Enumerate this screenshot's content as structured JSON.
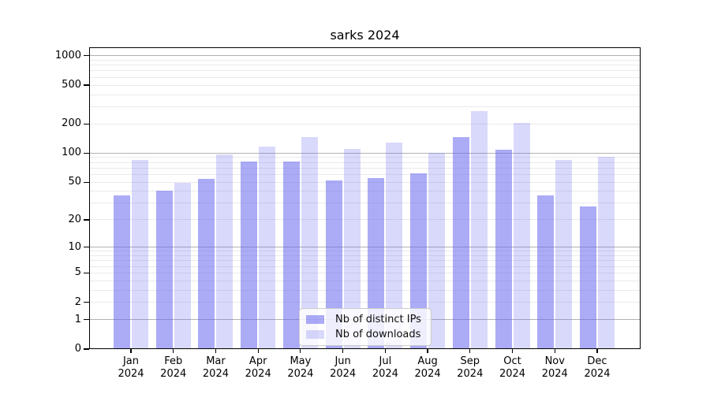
{
  "title": "sarks 2024",
  "chart_data": {
    "type": "bar",
    "title": "sarks 2024",
    "y_scale": "log1p",
    "ylim": [
      0,
      1220
    ],
    "y_ticks": [
      0,
      1,
      2,
      5,
      10,
      20,
      50,
      100,
      200,
      500,
      1000
    ],
    "grid": true,
    "categories": [
      "Jan 2024",
      "Feb 2024",
      "Mar 2024",
      "Apr 2024",
      "May 2024",
      "Jun 2024",
      "Jul 2024",
      "Aug 2024",
      "Sep 2024",
      "Oct 2024",
      "Nov 2024",
      "Dec 2024"
    ],
    "x_tick_month": [
      "Jan",
      "Feb",
      "Mar",
      "Apr",
      "May",
      "Jun",
      "Jul",
      "Aug",
      "Sep",
      "Oct",
      "Nov",
      "Dec"
    ],
    "x_tick_year": "2024",
    "series": [
      {
        "name": "Nb of distinct IPs",
        "fill": "rgba(102,102,238,0.55)",
        "values": [
          36,
          41,
          54,
          82,
          82,
          52,
          55,
          62,
          147,
          108,
          36,
          28
        ]
      },
      {
        "name": "Nb of downloads",
        "fill": "rgba(102,102,238,0.25)",
        "values": [
          85,
          49,
          97,
          117,
          146,
          110,
          128,
          101,
          270,
          204,
          85,
          91
        ]
      }
    ],
    "legend": {
      "position": "bottom-center",
      "entries": [
        "Nb of distinct IPs",
        "Nb of downloads"
      ]
    },
    "colors": {
      "major_grid": "#b2b2b2",
      "minor_grid": "#eaeaea",
      "spine": "#000000",
      "background": "#ffffff"
    }
  }
}
